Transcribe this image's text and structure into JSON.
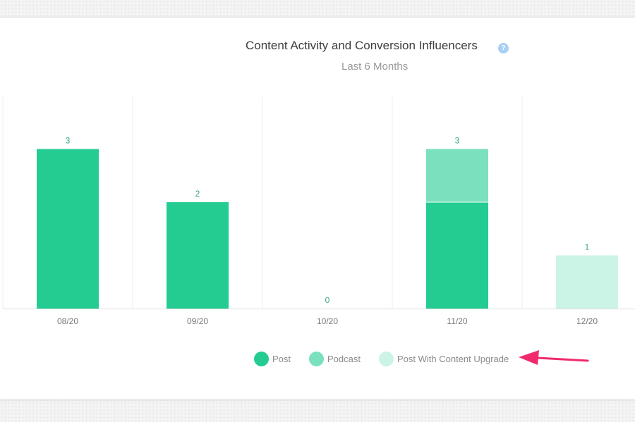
{
  "chart_data": {
    "type": "bar",
    "title": "Content Activity and Conversion Influencers",
    "subtitle": "Last 6 Months",
    "categories": [
      "08/20",
      "09/20",
      "10/20",
      "11/20",
      "12/20"
    ],
    "totals": [
      "3",
      "2",
      "0",
      "3",
      "1"
    ],
    "series": [
      {
        "name": "Post",
        "color": "#24cc91",
        "values": [
          3,
          2,
          0,
          2,
          0
        ]
      },
      {
        "name": "Podcast",
        "color": "#7ae0bd",
        "values": [
          0,
          0,
          0,
          1,
          0
        ]
      },
      {
        "name": "Post With Content Upgrade",
        "color": "#cbf4e6",
        "values": [
          0,
          0,
          0,
          0,
          1
        ]
      }
    ],
    "ylim": [
      0,
      3
    ],
    "stacked": true,
    "grid": true,
    "legend_position": "bottom"
  },
  "help_icon": {
    "glyph": "?",
    "icon": "question-circle-icon"
  },
  "annotation": {
    "icon": "arrow-left-icon",
    "color": "#f1296c"
  }
}
